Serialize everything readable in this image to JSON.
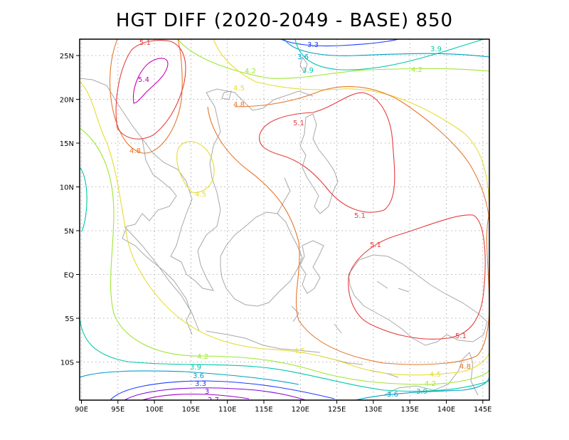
{
  "title": "HGT DIFF (2020-2049 - BASE) 850",
  "axes": {
    "lon_labels": [
      "90E",
      "95E",
      "100E",
      "105E",
      "110E",
      "115E",
      "120E",
      "125E",
      "130E",
      "135E",
      "140E",
      "145E"
    ],
    "lat_labels": [
      "25N",
      "20N",
      "15N",
      "10N",
      "5N",
      "EQ",
      "5S",
      "10S"
    ]
  },
  "contour_colors": {
    "2.7": "#a000c8",
    "3": "#8200dc",
    "3.3": "#1e3cff",
    "3.6": "#00a0c8",
    "3.9": "#00c8aa",
    "4.2": "#a0e632",
    "4.5": "#e6dc32",
    "4.8": "#e6782e",
    "5.1": "#e63c3c",
    "5.4": "#c800b4"
  },
  "contour_labels": [
    {
      "text": "5.1"
    },
    {
      "text": "5.4"
    },
    {
      "text": "4.8"
    },
    {
      "text": "4.8"
    },
    {
      "text": "4.5"
    },
    {
      "text": "4.5"
    },
    {
      "text": "4.2"
    },
    {
      "text": "4.2"
    },
    {
      "text": "3.3"
    },
    {
      "text": "3.6"
    },
    {
      "text": "3.9"
    },
    {
      "text": "3.9"
    },
    {
      "text": "5.1"
    },
    {
      "text": "5.1"
    },
    {
      "text": "5.1"
    },
    {
      "text": "5.1"
    },
    {
      "text": "4.5"
    },
    {
      "text": "4.5"
    },
    {
      "text": "4.8"
    },
    {
      "text": "4.2"
    },
    {
      "text": "3.9"
    },
    {
      "text": "3.6"
    },
    {
      "text": "3.9"
    },
    {
      "text": "3.6"
    },
    {
      "text": "3.3"
    },
    {
      "text": "3"
    },
    {
      "text": "2.7"
    },
    {
      "text": "4.2"
    }
  ]
}
